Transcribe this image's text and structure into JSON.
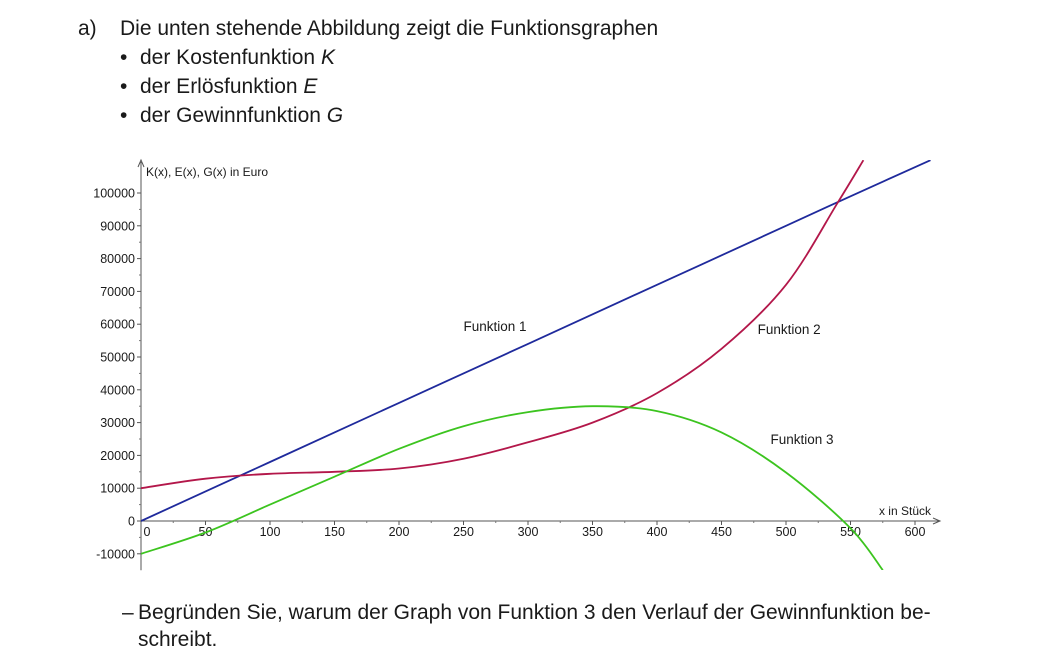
{
  "task": {
    "label": "a)",
    "intro": "Die unten stehende Abbildung zeigt die Funktionsgraphen",
    "bullets": [
      {
        "text": "der Kostenfunktion ",
        "symbol": "K"
      },
      {
        "text": "der Erlösfunktion ",
        "symbol": "E"
      },
      {
        "text": "der Gewinnfunktion ",
        "symbol": "G"
      }
    ],
    "question": "Begründen Sie, warum der Graph von Funktion 3 den Verlauf der Gewinnfunktion be-schreibt."
  },
  "chart_data": {
    "type": "line",
    "title": "",
    "xlabel": "x in Stück",
    "ylabel": "K(x), E(x), G(x) in Euro",
    "xlim": [
      0,
      620
    ],
    "ylim": [
      -15000,
      110000
    ],
    "x_ticks": [
      0,
      50,
      100,
      150,
      200,
      250,
      300,
      350,
      400,
      450,
      500,
      550,
      600
    ],
    "y_ticks": [
      -10000,
      0,
      10000,
      20000,
      30000,
      40000,
      50000,
      60000,
      70000,
      80000,
      90000,
      100000
    ],
    "grid": false,
    "series": [
      {
        "name": "Funktion 1",
        "color": "#1f2a9c",
        "x": [
          0,
          100,
          200,
          300,
          400,
          500,
          550,
          612
        ],
        "y": [
          0,
          18000,
          36000,
          54000,
          72000,
          90000,
          99000,
          110000
        ]
      },
      {
        "name": "Funktion 2",
        "color": "#b3174a",
        "x": [
          0,
          50,
          100,
          150,
          200,
          250,
          300,
          350,
          400,
          450,
          500,
          540,
          560
        ],
        "y": [
          10000,
          12900,
          14400,
          15000,
          16000,
          19000,
          24000,
          30000,
          39000,
          52500,
          72000,
          97000,
          110000
        ]
      },
      {
        "name": "Funktion 3",
        "color": "#3cc41f",
        "x": [
          0,
          50,
          100,
          150,
          200,
          250,
          300,
          350,
          400,
          450,
          500,
          550,
          575
        ],
        "y": [
          -10000,
          -3500,
          5000,
          13500,
          22000,
          28900,
          33200,
          35000,
          33500,
          27000,
          14800,
          -2200,
          -15000
        ]
      }
    ]
  }
}
